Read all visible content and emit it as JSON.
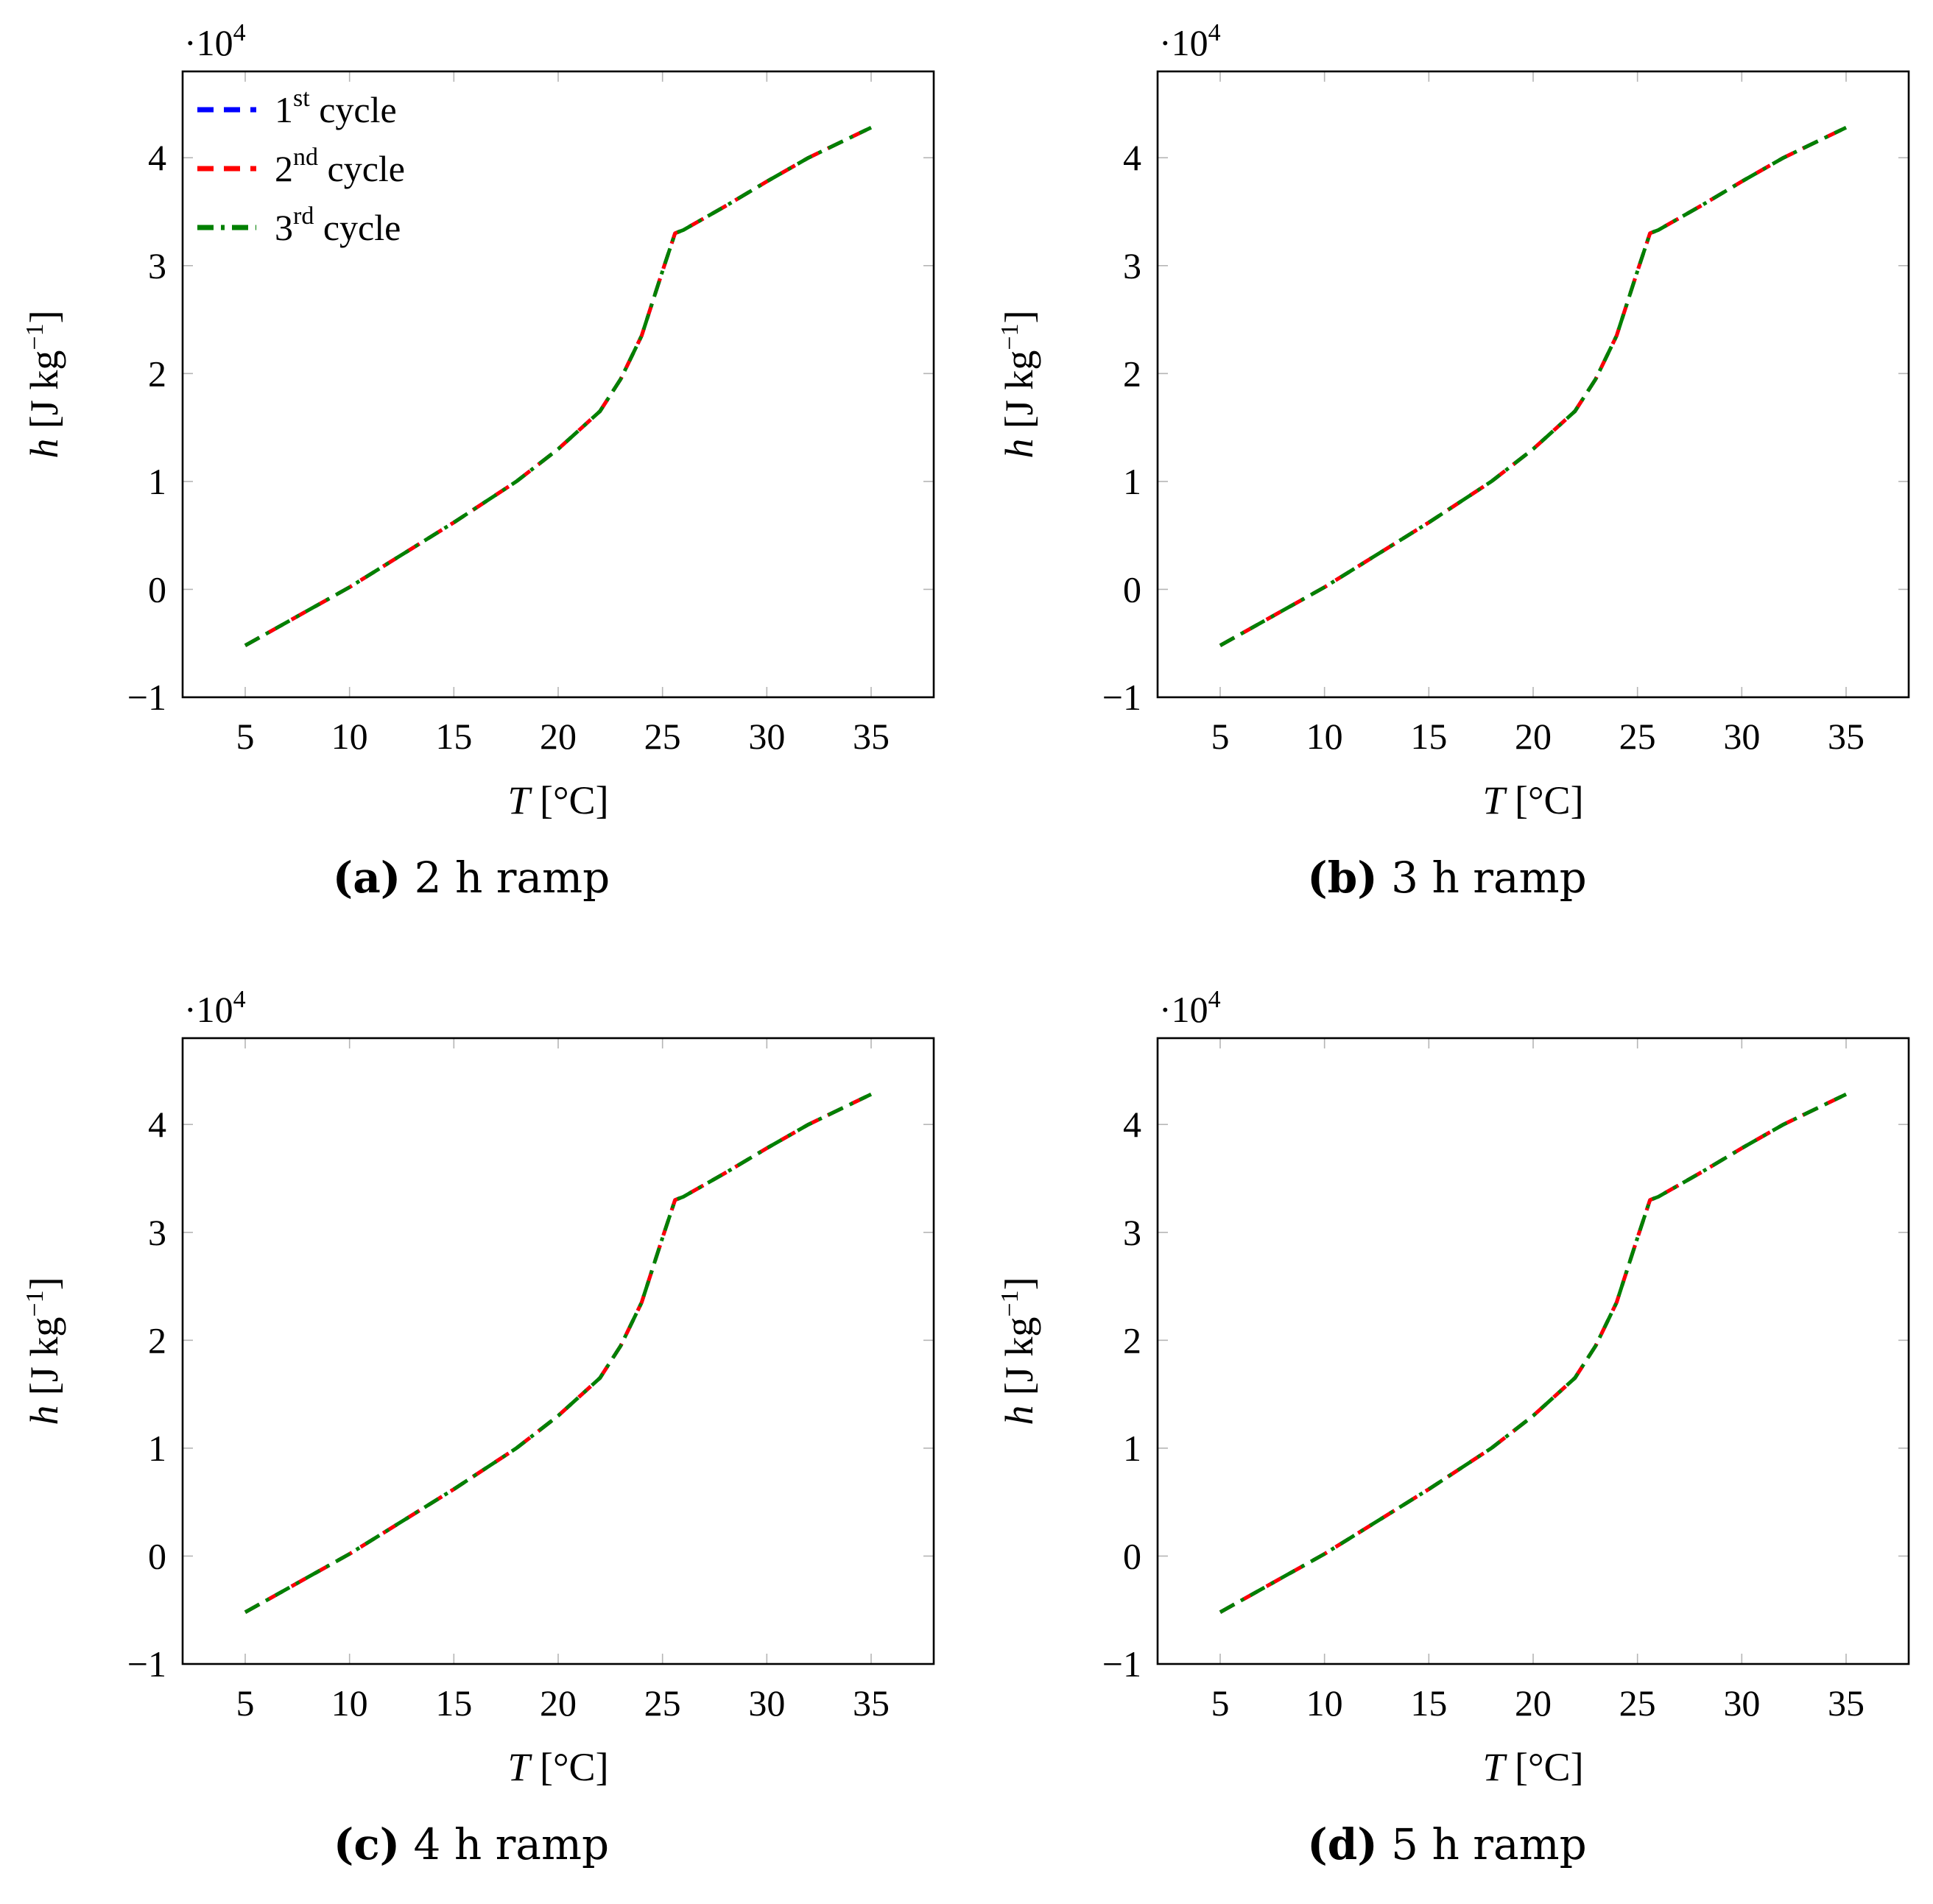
{
  "figure": {
    "x_label_var": "T",
    "x_label_unit": "[°C]",
    "y_label_var": "h",
    "y_label_unit": "[J kg",
    "y_label_exp": "−1",
    "y_label_close": "]",
    "multiplier_base": "·10",
    "multiplier_exp": "4",
    "legend": [
      {
        "name": "1",
        "sup": "st",
        "suffix": " cycle",
        "color": "#0000ff",
        "dash": "dashed"
      },
      {
        "name": "2",
        "sup": "nd",
        "suffix": " cycle",
        "color": "#ff0000",
        "dash": "dashed"
      },
      {
        "name": "3",
        "sup": "rd",
        "suffix": " cycle",
        "color": "#008000",
        "dash": "dash-dot"
      }
    ],
    "legend_position": "top-left"
  },
  "chart_data": [
    {
      "type": "line",
      "caption_letter": "(a)",
      "caption_text": "2 h ramp",
      "xlabel": "T [°C]",
      "ylabel": "h [J kg−1]",
      "y_multiplier": "·10^4",
      "xlim": [
        2,
        38
      ],
      "ylim": [
        -1,
        4.8
      ],
      "xticks": [
        5,
        10,
        15,
        20,
        25,
        30,
        35
      ],
      "yticks": [
        -1,
        0,
        1,
        2,
        3,
        4
      ],
      "grid": "y-ticks only",
      "legend": true,
      "series": [
        {
          "name": "1st cycle",
          "color": "#0000ff",
          "dash": "dashed",
          "x": [
            5,
            10,
            15,
            18,
            20,
            22,
            23,
            24,
            25,
            25.6,
            26,
            28,
            30,
            32,
            35
          ],
          "y": [
            -0.52,
            0.02,
            0.62,
            1.0,
            1.3,
            1.65,
            1.95,
            2.35,
            2.95,
            3.3,
            3.33,
            3.55,
            3.78,
            4.0,
            4.28
          ]
        },
        {
          "name": "2nd cycle",
          "color": "#ff0000",
          "dash": "dashed",
          "x": [
            5,
            10,
            15,
            18,
            20,
            22,
            23,
            24,
            25,
            25.6,
            26,
            28,
            30,
            32,
            35
          ],
          "y": [
            -0.52,
            0.02,
            0.62,
            1.0,
            1.3,
            1.65,
            1.95,
            2.35,
            2.95,
            3.3,
            3.33,
            3.55,
            3.78,
            4.0,
            4.28
          ]
        },
        {
          "name": "3rd cycle",
          "color": "#008000",
          "dash": "dash-dot",
          "x": [
            5,
            10,
            15,
            18,
            20,
            22,
            23,
            24,
            25,
            25.6,
            26,
            28,
            30,
            32,
            35
          ],
          "y": [
            -0.52,
            0.02,
            0.62,
            1.0,
            1.3,
            1.65,
            1.95,
            2.35,
            2.95,
            3.3,
            3.33,
            3.55,
            3.78,
            4.0,
            4.28
          ]
        }
      ]
    },
    {
      "type": "line",
      "caption_letter": "(b)",
      "caption_text": "3 h ramp",
      "xlabel": "T [°C]",
      "ylabel": "h [J kg−1]",
      "y_multiplier": "·10^4",
      "xlim": [
        2,
        38
      ],
      "ylim": [
        -1,
        4.8
      ],
      "xticks": [
        5,
        10,
        15,
        20,
        25,
        30,
        35
      ],
      "yticks": [
        -1,
        0,
        1,
        2,
        3,
        4
      ],
      "grid": "y-ticks only",
      "legend": false,
      "series": [
        {
          "name": "1st cycle",
          "color": "#0000ff",
          "dash": "dashed",
          "x": [
            5,
            10,
            15,
            18,
            20,
            22,
            23,
            24,
            25,
            25.6,
            26,
            28,
            30,
            32,
            35
          ],
          "y": [
            -0.52,
            0.02,
            0.62,
            1.0,
            1.3,
            1.65,
            1.95,
            2.35,
            2.95,
            3.3,
            3.33,
            3.55,
            3.78,
            4.0,
            4.28
          ]
        },
        {
          "name": "2nd cycle",
          "color": "#ff0000",
          "dash": "dashed",
          "x": [
            5,
            10,
            15,
            18,
            20,
            22,
            23,
            24,
            25,
            25.6,
            26,
            28,
            30,
            32,
            35
          ],
          "y": [
            -0.52,
            0.02,
            0.62,
            1.0,
            1.3,
            1.65,
            1.95,
            2.35,
            2.95,
            3.3,
            3.33,
            3.55,
            3.78,
            4.0,
            4.28
          ]
        },
        {
          "name": "3rd cycle",
          "color": "#008000",
          "dash": "dash-dot",
          "x": [
            5,
            10,
            15,
            18,
            20,
            22,
            23,
            24,
            25,
            25.6,
            26,
            28,
            30,
            32,
            35
          ],
          "y": [
            -0.52,
            0.02,
            0.62,
            1.0,
            1.3,
            1.65,
            1.95,
            2.35,
            2.95,
            3.3,
            3.33,
            3.55,
            3.78,
            4.0,
            4.28
          ]
        }
      ]
    },
    {
      "type": "line",
      "caption_letter": "(c)",
      "caption_text": "4 h ramp",
      "xlabel": "T [°C]",
      "ylabel": "h [J kg−1]",
      "y_multiplier": "·10^4",
      "xlim": [
        2,
        38
      ],
      "ylim": [
        -1,
        4.8
      ],
      "xticks": [
        5,
        10,
        15,
        20,
        25,
        30,
        35
      ],
      "yticks": [
        -1,
        0,
        1,
        2,
        3,
        4
      ],
      "grid": "y-ticks only",
      "legend": false,
      "series": [
        {
          "name": "1st cycle",
          "color": "#0000ff",
          "dash": "dashed",
          "x": [
            5,
            10,
            15,
            18,
            20,
            22,
            23,
            24,
            25,
            25.6,
            26,
            28,
            30,
            32,
            35
          ],
          "y": [
            -0.52,
            0.02,
            0.62,
            1.0,
            1.3,
            1.65,
            1.95,
            2.35,
            2.95,
            3.3,
            3.33,
            3.55,
            3.78,
            4.0,
            4.28
          ]
        },
        {
          "name": "2nd cycle",
          "color": "#ff0000",
          "dash": "dashed",
          "x": [
            5,
            10,
            15,
            18,
            20,
            22,
            23,
            24,
            25,
            25.6,
            26,
            28,
            30,
            32,
            35
          ],
          "y": [
            -0.52,
            0.02,
            0.62,
            1.0,
            1.3,
            1.65,
            1.95,
            2.35,
            2.95,
            3.3,
            3.33,
            3.55,
            3.78,
            4.0,
            4.28
          ]
        },
        {
          "name": "3rd cycle",
          "color": "#008000",
          "dash": "dash-dot",
          "x": [
            5,
            10,
            15,
            18,
            20,
            22,
            23,
            24,
            25,
            25.6,
            26,
            28,
            30,
            32,
            35
          ],
          "y": [
            -0.52,
            0.02,
            0.62,
            1.0,
            1.3,
            1.65,
            1.95,
            2.35,
            2.95,
            3.3,
            3.33,
            3.55,
            3.78,
            4.0,
            4.28
          ]
        }
      ]
    },
    {
      "type": "line",
      "caption_letter": "(d)",
      "caption_text": "5 h ramp",
      "xlabel": "T [°C]",
      "ylabel": "h [J kg−1]",
      "y_multiplier": "·10^4",
      "xlim": [
        2,
        38
      ],
      "ylim": [
        -1,
        4.8
      ],
      "xticks": [
        5,
        10,
        15,
        20,
        25,
        30,
        35
      ],
      "yticks": [
        -1,
        0,
        1,
        2,
        3,
        4
      ],
      "grid": "y-ticks only",
      "legend": false,
      "series": [
        {
          "name": "1st cycle",
          "color": "#0000ff",
          "dash": "dashed",
          "x": [
            5,
            10,
            15,
            18,
            20,
            22,
            23,
            24,
            25,
            25.6,
            26,
            28,
            30,
            32,
            35
          ],
          "y": [
            -0.52,
            0.02,
            0.62,
            1.0,
            1.3,
            1.65,
            1.95,
            2.35,
            2.95,
            3.3,
            3.33,
            3.55,
            3.78,
            4.0,
            4.28
          ]
        },
        {
          "name": "2nd cycle",
          "color": "#ff0000",
          "dash": "dashed",
          "x": [
            5,
            10,
            15,
            18,
            20,
            22,
            23,
            24,
            25,
            25.6,
            26,
            28,
            30,
            32,
            35
          ],
          "y": [
            -0.52,
            0.02,
            0.62,
            1.0,
            1.3,
            1.65,
            1.95,
            2.35,
            2.95,
            3.3,
            3.33,
            3.55,
            3.78,
            4.0,
            4.28
          ]
        },
        {
          "name": "3rd cycle",
          "color": "#008000",
          "dash": "dash-dot",
          "x": [
            5,
            10,
            15,
            18,
            20,
            22,
            23,
            24,
            25,
            25.6,
            26,
            28,
            30,
            32,
            35
          ],
          "y": [
            -0.52,
            0.02,
            0.62,
            1.0,
            1.3,
            1.65,
            1.95,
            2.35,
            2.95,
            3.3,
            3.33,
            3.55,
            3.78,
            4.0,
            4.28
          ]
        }
      ]
    }
  ]
}
